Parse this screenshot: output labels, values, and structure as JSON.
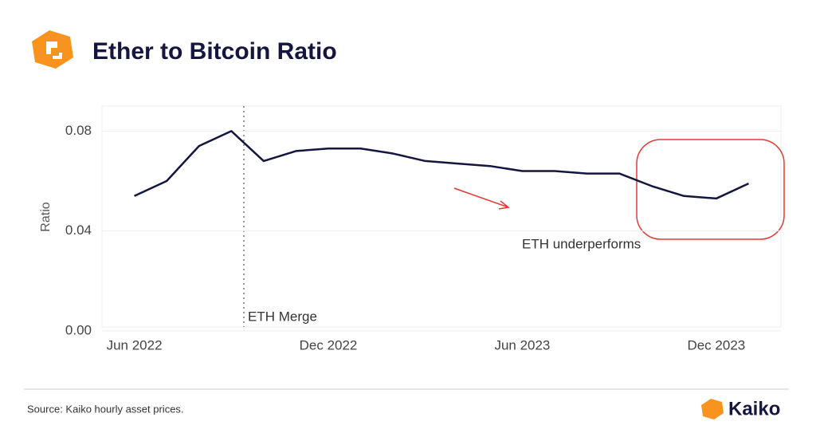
{
  "header": {
    "title": "Ether to Bitcoin Ratio"
  },
  "chart_data": {
    "type": "line",
    "ylabel": "Ratio",
    "x": [
      "2022-06",
      "2022-07",
      "2022-08",
      "2022-09",
      "2022-10",
      "2022-11",
      "2022-12",
      "2023-01",
      "2023-02",
      "2023-03",
      "2023-04",
      "2023-05",
      "2023-06",
      "2023-07",
      "2023-08",
      "2023-09",
      "2023-10",
      "2023-11",
      "2023-12",
      "2024-01"
    ],
    "values": [
      0.054,
      0.06,
      0.074,
      0.08,
      0.068,
      0.072,
      0.073,
      0.073,
      0.071,
      0.068,
      0.067,
      0.066,
      0.064,
      0.064,
      0.063,
      0.063,
      0.058,
      0.054,
      0.053,
      0.059
    ],
    "color": "#14163f",
    "xlim": [
      "2022-05",
      "2024-02"
    ],
    "xticks": [
      {
        "value": "2022-06",
        "label": "Jun 2022"
      },
      {
        "value": "2022-12",
        "label": "Dec 2022"
      },
      {
        "value": "2023-06",
        "label": "Jun 2023"
      },
      {
        "value": "2023-12",
        "label": "Dec 2023"
      }
    ],
    "ylim": [
      0,
      0.09
    ],
    "yticks": [
      {
        "value": 0,
        "label": "0.00"
      },
      {
        "value": 0.04,
        "label": "0.04"
      },
      {
        "value": 0.08,
        "label": "0.08"
      }
    ],
    "grid": true,
    "annotations": [
      "ETH Merge",
      "ETH underperforms"
    ]
  },
  "footer": {
    "source": "Source: Kaiko hourly asset prices.",
    "brand": "Kaiko"
  }
}
